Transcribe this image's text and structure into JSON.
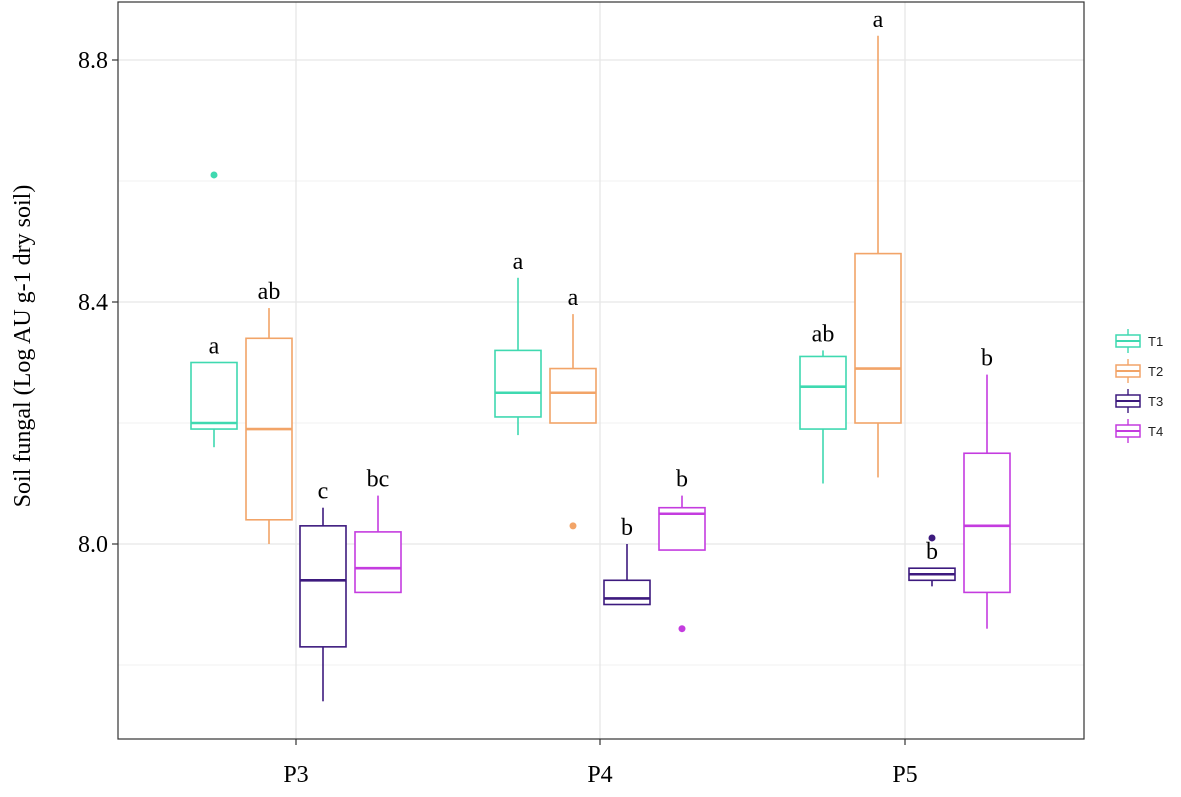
{
  "chart_data": {
    "type": "boxplot",
    "title": "",
    "xlabel": "",
    "ylabel": "Soil fungal (Log AU g-1 dry soil)",
    "ylim": [
      7.68,
      8.9
    ],
    "y_ticks": [
      8.0,
      8.4,
      8.8
    ],
    "y_tick_labels": [
      "8.0",
      "8.4",
      "8.8"
    ],
    "y_minor_gridlines": [
      7.8,
      8.2,
      8.6
    ],
    "grid": true,
    "categories": [
      "P3",
      "P4",
      "P5"
    ],
    "legend": {
      "position": "right",
      "entries": [
        "T1",
        "T2",
        "T3",
        "T4"
      ]
    },
    "series": [
      {
        "name": "T1",
        "color": "#3fd9b0",
        "boxes": [
          {
            "category": "P3",
            "min": 8.16,
            "q1": 8.19,
            "median": 8.2,
            "q3": 8.3,
            "max": 8.3,
            "outliers": [
              8.61
            ],
            "label": "a"
          },
          {
            "category": "P4",
            "min": 8.18,
            "q1": 8.21,
            "median": 8.25,
            "q3": 8.32,
            "max": 8.44,
            "outliers": [],
            "label": "a"
          },
          {
            "category": "P5",
            "min": 8.1,
            "q1": 8.19,
            "median": 8.26,
            "q3": 8.31,
            "max": 8.32,
            "outliers": [],
            "label": "ab"
          }
        ]
      },
      {
        "name": "T2",
        "color": "#f2a468",
        "boxes": [
          {
            "category": "P3",
            "min": 8.0,
            "q1": 8.04,
            "median": 8.19,
            "q3": 8.34,
            "max": 8.39,
            "outliers": [],
            "label": "ab"
          },
          {
            "category": "P4",
            "min": 8.2,
            "q1": 8.2,
            "median": 8.25,
            "q3": 8.29,
            "max": 8.38,
            "outliers": [
              8.03
            ],
            "label": "a"
          },
          {
            "category": "P5",
            "min": 8.11,
            "q1": 8.2,
            "median": 8.29,
            "q3": 8.48,
            "max": 8.84,
            "outliers": [],
            "label": "a"
          }
        ]
      },
      {
        "name": "T3",
        "color": "#3d1a7e",
        "boxes": [
          {
            "category": "P3",
            "min": 7.74,
            "q1": 7.83,
            "median": 7.94,
            "q3": 8.03,
            "max": 8.06,
            "outliers": [],
            "label": "c"
          },
          {
            "category": "P4",
            "min": 7.9,
            "q1": 7.9,
            "median": 7.91,
            "q3": 7.94,
            "max": 8.0,
            "outliers": [],
            "label": "b"
          },
          {
            "category": "P5",
            "min": 7.93,
            "q1": 7.94,
            "median": 7.95,
            "q3": 7.96,
            "max": 7.96,
            "outliers": [
              8.01
            ],
            "label": "b"
          }
        ]
      },
      {
        "name": "T4",
        "color": "#c43cdf",
        "boxes": [
          {
            "category": "P3",
            "min": 7.92,
            "q1": 7.92,
            "median": 7.96,
            "q3": 8.02,
            "max": 8.08,
            "outliers": [],
            "label": "bc"
          },
          {
            "category": "P4",
            "min": 7.99,
            "q1": 7.99,
            "median": 8.05,
            "q3": 8.06,
            "max": 8.08,
            "outliers": [
              7.86
            ],
            "label": "b"
          },
          {
            "category": "P5",
            "min": 7.86,
            "q1": 7.92,
            "median": 8.03,
            "q3": 8.15,
            "max": 8.28,
            "outliers": [],
            "label": "b"
          }
        ]
      }
    ]
  }
}
